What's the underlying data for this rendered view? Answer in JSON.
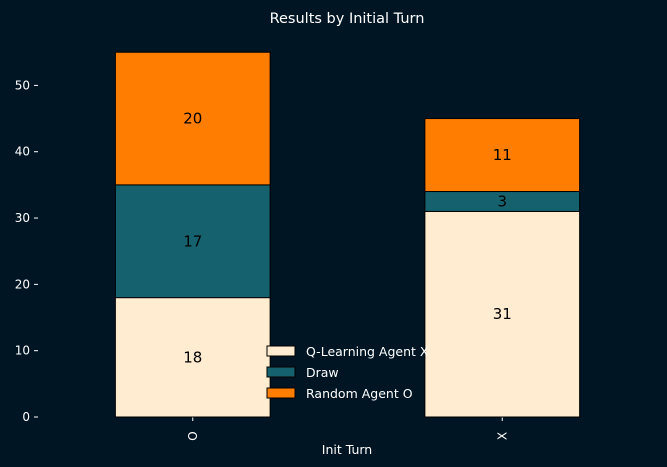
{
  "chart_data": {
    "type": "bar",
    "stacked": true,
    "title": "Results by Initial Turn",
    "xlabel": "Init Turn",
    "ylabel": "",
    "categories": [
      "O",
      "X"
    ],
    "series": [
      {
        "name": "Q-Learning Agent X",
        "values": [
          18,
          31
        ],
        "color": "#ffecd1"
      },
      {
        "name": "Draw",
        "values": [
          17,
          3
        ],
        "color": "#15616d"
      },
      {
        "name": "Random Agent O",
        "values": [
          20,
          11
        ],
        "color": "#ff7d00"
      }
    ],
    "ylim": [
      0,
      57.75
    ],
    "yticks": [
      0,
      10,
      20,
      30,
      40,
      50
    ],
    "grid": false,
    "legend": "lower-center",
    "colors": {
      "background": "#001524",
      "text": "#ffffff",
      "edge": "#000000"
    }
  }
}
